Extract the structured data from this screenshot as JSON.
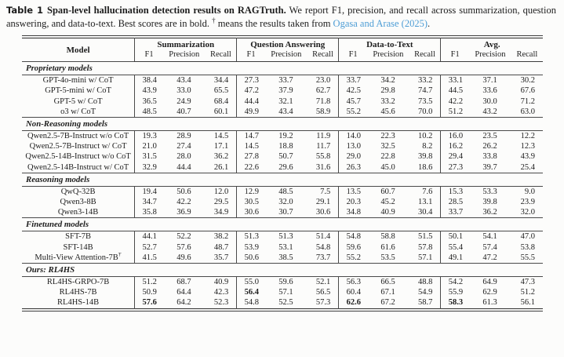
{
  "caption": {
    "label": "Table 1",
    "title": "Span-level hallucination detection results on RAGTruth.",
    "body": " We report F1, precision, and recall across summarization, question answering, and data-to-text. Best scores are in bold. ",
    "dagger": "†",
    "dagger_text": " means the results taken from ",
    "link": "Ogasa and Arase (2025)",
    "suffix": "."
  },
  "colors": {
    "link_blue": "#4d9dd5",
    "text": "#1d1d1d",
    "rule": "#3c3c3c"
  },
  "table": {
    "model_header": "Model",
    "groups": [
      {
        "label": "Summarization"
      },
      {
        "label": "Question Answering"
      },
      {
        "label": "Data-to-Text"
      },
      {
        "label": "Avg."
      }
    ],
    "metric_headers": [
      "F1",
      "Precision",
      "Recall"
    ],
    "sections": [
      {
        "label": "Proprietary models",
        "rows": [
          {
            "model": "GPT-4o-mini w/ CoT",
            "values": [
              "38.4",
              "43.4",
              "34.4",
              "27.3",
              "33.7",
              "23.0",
              "33.7",
              "34.2",
              "33.2",
              "33.1",
              "37.1",
              "30.2"
            ],
            "bold": []
          },
          {
            "model": "GPT-5-mini w/ CoT",
            "values": [
              "43.9",
              "33.0",
              "65.5",
              "47.2",
              "37.9",
              "62.7",
              "42.5",
              "29.8",
              "74.7",
              "44.5",
              "33.6",
              "67.6"
            ],
            "bold": []
          },
          {
            "model": "GPT-5 w/ CoT",
            "values": [
              "36.5",
              "24.9",
              "68.4",
              "44.4",
              "32.1",
              "71.8",
              "45.7",
              "33.2",
              "73.5",
              "42.2",
              "30.0",
              "71.2"
            ],
            "bold": []
          },
          {
            "model": "o3 w/ CoT",
            "values": [
              "48.5",
              "40.7",
              "60.1",
              "49.9",
              "43.4",
              "58.9",
              "55.2",
              "45.6",
              "70.0",
              "51.2",
              "43.2",
              "63.0"
            ],
            "bold": []
          }
        ]
      },
      {
        "label": "Non-Reasoning models",
        "rows": [
          {
            "model": "Qwen2.5-7B-Instruct w/o CoT",
            "values": [
              "19.3",
              "28.9",
              "14.5",
              "14.7",
              "19.2",
              "11.9",
              "14.0",
              "22.3",
              "10.2",
              "16.0",
              "23.5",
              "12.2"
            ],
            "bold": []
          },
          {
            "model": "Qwen2.5-7B-Instruct w/ CoT",
            "values": [
              "21.0",
              "27.4",
              "17.1",
              "14.5",
              "18.8",
              "11.7",
              "13.0",
              "32.5",
              "8.2",
              "16.2",
              "26.2",
              "12.3"
            ],
            "bold": []
          },
          {
            "model": "Qwen2.5-14B-Instruct w/o CoT",
            "values": [
              "31.5",
              "28.0",
              "36.2",
              "27.8",
              "50.7",
              "55.8",
              "29.0",
              "22.8",
              "39.8",
              "29.4",
              "33.8",
              "43.9"
            ],
            "bold": []
          },
          {
            "model": "Qwen2.5-14B-Instruct w/ CoT",
            "values": [
              "32.9",
              "44.4",
              "26.1",
              "22.6",
              "29.6",
              "31.6",
              "26.3",
              "45.0",
              "18.6",
              "27.3",
              "39.7",
              "25.4"
            ],
            "bold": []
          }
        ]
      },
      {
        "label": "Reasoning models",
        "rows": [
          {
            "model": "QwQ-32B",
            "values": [
              "19.4",
              "50.6",
              "12.0",
              "12.9",
              "48.5",
              "7.5",
              "13.5",
              "60.7",
              "7.6",
              "15.3",
              "53.3",
              "9.0"
            ],
            "bold": []
          },
          {
            "model": "Qwen3-8B",
            "values": [
              "34.7",
              "42.2",
              "29.5",
              "30.5",
              "32.0",
              "29.1",
              "20.3",
              "45.2",
              "13.1",
              "28.5",
              "39.8",
              "23.9"
            ],
            "bold": []
          },
          {
            "model": "Qwen3-14B",
            "values": [
              "35.8",
              "36.9",
              "34.9",
              "30.6",
              "30.7",
              "30.6",
              "34.8",
              "40.9",
              "30.4",
              "33.7",
              "36.2",
              "32.0"
            ],
            "bold": []
          }
        ]
      },
      {
        "label": "Finetuned models",
        "rows": [
          {
            "model": "SFT-7B",
            "values": [
              "44.1",
              "52.2",
              "38.2",
              "51.3",
              "51.3",
              "51.4",
              "54.8",
              "58.8",
              "51.5",
              "50.1",
              "54.1",
              "47.0"
            ],
            "bold": []
          },
          {
            "model": "SFT-14B",
            "values": [
              "52.7",
              "57.6",
              "48.7",
              "53.9",
              "53.1",
              "54.8",
              "59.6",
              "61.6",
              "57.8",
              "55.4",
              "57.4",
              "53.8"
            ],
            "bold": []
          },
          {
            "model": "Multi-View Attention-7B",
            "sup": "†",
            "values": [
              "41.5",
              "49.6",
              "35.7",
              "50.6",
              "38.5",
              "73.7",
              "55.2",
              "53.5",
              "57.1",
              "49.1",
              "47.2",
              "55.5"
            ],
            "bold": []
          }
        ]
      },
      {
        "label": "Ours: RL4HS",
        "rows": [
          {
            "model": "RL4HS-GRPO-7B",
            "values": [
              "51.2",
              "68.7",
              "40.9",
              "55.0",
              "59.6",
              "52.1",
              "56.3",
              "66.5",
              "48.8",
              "54.2",
              "64.9",
              "47.3"
            ],
            "bold": []
          },
          {
            "model": "RL4HS-7B",
            "values": [
              "50.9",
              "64.4",
              "42.3",
              "56.4",
              "57.1",
              "56.5",
              "60.4",
              "67.1",
              "54.9",
              "55.9",
              "62.9",
              "51.2"
            ],
            "bold": [
              3
            ]
          },
          {
            "model": "RL4HS-14B",
            "values": [
              "57.6",
              "64.2",
              "52.3",
              "54.8",
              "52.5",
              "57.3",
              "62.6",
              "67.2",
              "58.7",
              "58.3",
              "61.3",
              "56.1"
            ],
            "bold": [
              0,
              6,
              9
            ]
          }
        ]
      }
    ]
  }
}
